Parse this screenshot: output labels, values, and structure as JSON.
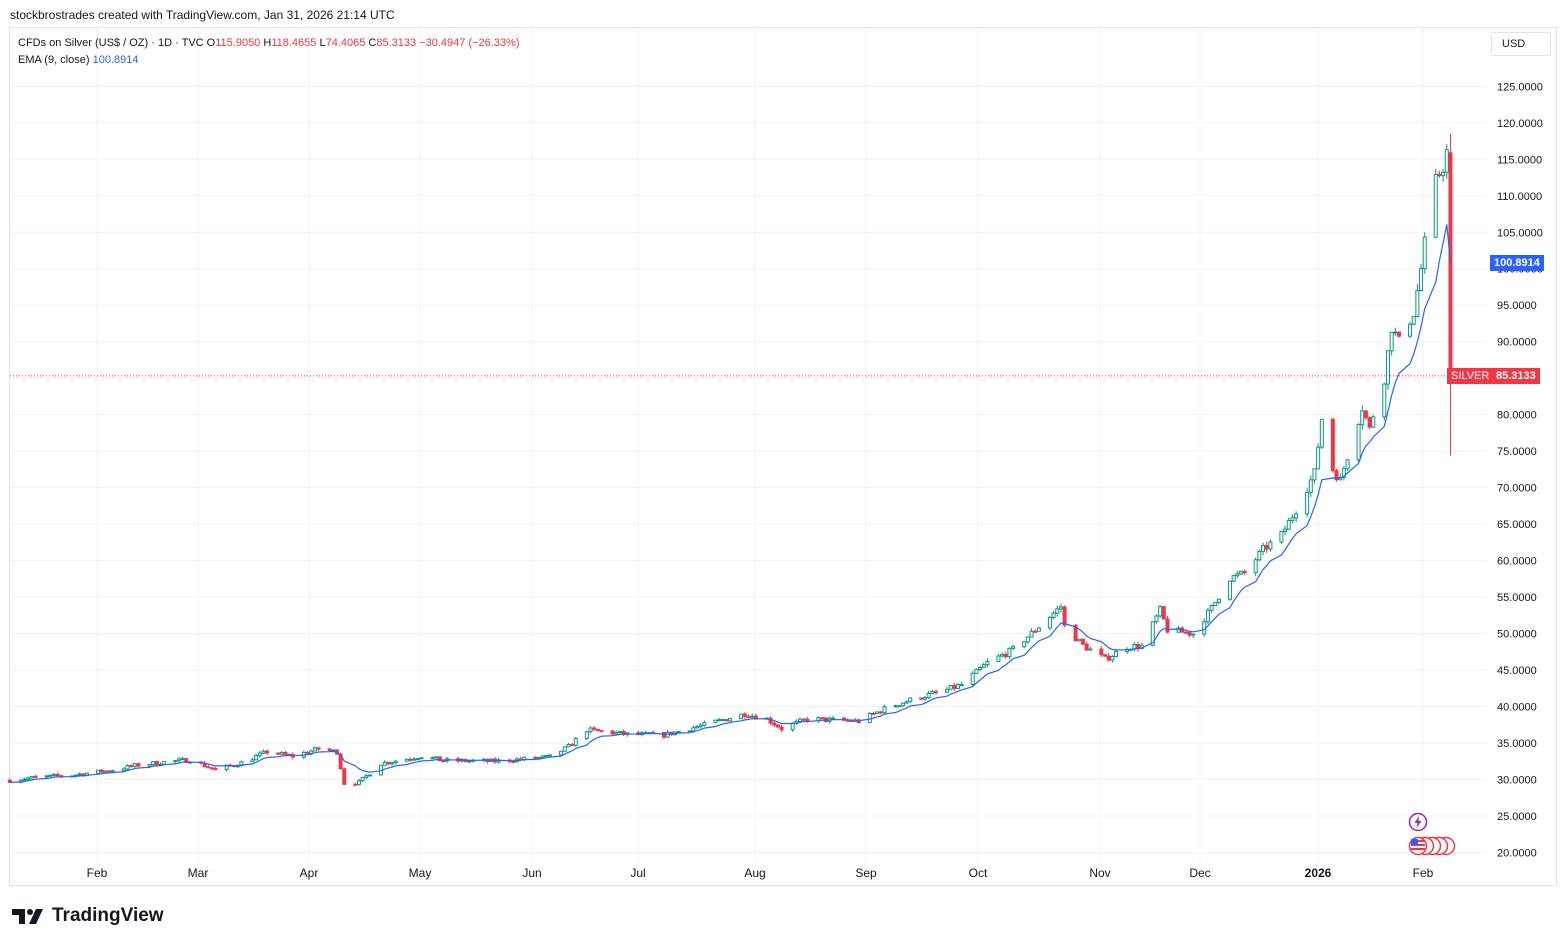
{
  "header": {
    "text": "stockbrostrades created with TradingView.com, Jan 31, 2026 21:14 UTC"
  },
  "legend": {
    "symbol": "CFDs on Silver (US$ / OZ) · 1D · TVC",
    "o_label": "O",
    "o_value": "115.9050",
    "h_label": "H",
    "h_value": "118.4655",
    "l_label": "L",
    "l_value": "74.4065",
    "c_label": "C",
    "c_value": "85.3133",
    "change": "−30.4947 (−26.33%)",
    "ema_label": "EMA (9, close)",
    "ema_value": "100.8914"
  },
  "currency": "USD",
  "tags": {
    "ema_value": "100.8914",
    "symbol_name": "SILVER",
    "last_price": "85.3133"
  },
  "colors": {
    "up": "#089981",
    "down": "#f23645",
    "ema": "#2962ff",
    "grid": "#f0f3fa"
  },
  "icons": [
    "flash-icon",
    "us-flag-icon"
  ],
  "footer": {
    "brand": "TradingView"
  },
  "chart_data": {
    "type": "candlestick",
    "title": "CFDs on Silver (US$ / OZ) · 1D · TVC",
    "ylabel": "USD",
    "ylim": [
      18.5,
      130
    ],
    "y_ticks": [
      "125.0000",
      "120.0000",
      "115.0000",
      "110.0000",
      "105.0000",
      "100.0000",
      "95.0000",
      "90.0000",
      "85.0000",
      "80.0000",
      "75.0000",
      "70.0000",
      "65.0000",
      "60.0000",
      "55.0000",
      "50.0000",
      "45.0000",
      "40.0000",
      "35.0000",
      "30.0000",
      "25.0000",
      "20.0000"
    ],
    "x_ticks": [
      "Feb",
      "Mar",
      "Apr",
      "May",
      "Jun",
      "Jul",
      "Aug",
      "Sep",
      "Oct",
      "Nov",
      "Dec",
      "2026",
      "Feb"
    ],
    "trend_anchors": [
      [
        "2025-01-03",
        29.9
      ],
      [
        "2025-01-10",
        30.3
      ],
      [
        "2025-01-20",
        30.6
      ],
      [
        "2025-01-31",
        31.3
      ],
      [
        "2025-02-07",
        32.0
      ],
      [
        "2025-02-14",
        32.4
      ],
      [
        "2025-02-21",
        32.7
      ],
      [
        "2025-02-28",
        31.3
      ],
      [
        "2025-03-07",
        32.3
      ],
      [
        "2025-03-14",
        33.8
      ],
      [
        "2025-03-21",
        33.2
      ],
      [
        "2025-03-28",
        34.2
      ],
      [
        "2025-04-02",
        33.8
      ],
      [
        "2025-04-04",
        29.5
      ],
      [
        "2025-04-08",
        29.6
      ],
      [
        "2025-04-14",
        32.2
      ],
      [
        "2025-04-25",
        33.2
      ],
      [
        "2025-05-01",
        32.6
      ],
      [
        "2025-05-15",
        32.5
      ],
      [
        "2025-05-30",
        33.1
      ],
      [
        "2025-06-04",
        34.5
      ],
      [
        "2025-06-09",
        36.8
      ],
      [
        "2025-06-20",
        36.2
      ],
      [
        "2025-06-30",
        36.1
      ],
      [
        "2025-07-11",
        37.5
      ],
      [
        "2025-07-22",
        39.0
      ],
      [
        "2025-07-28",
        38.3
      ],
      [
        "2025-08-01",
        37.0
      ],
      [
        "2025-08-08",
        38.3
      ],
      [
        "2025-08-22",
        38.0
      ],
      [
        "2025-08-29",
        39.7
      ],
      [
        "2025-09-05",
        40.9
      ],
      [
        "2025-09-15",
        42.3
      ],
      [
        "2025-09-19",
        43.0
      ],
      [
        "2025-09-26",
        46.0
      ],
      [
        "2025-10-03",
        47.8
      ],
      [
        "2025-10-09",
        50.5
      ],
      [
        "2025-10-14",
        52.8
      ],
      [
        "2025-10-16",
        53.7
      ],
      [
        "2025-10-17",
        51.0
      ],
      [
        "2025-10-22",
        48.4
      ],
      [
        "2025-10-28",
        46.5
      ],
      [
        "2025-11-03",
        48.2
      ],
      [
        "2025-11-07",
        48.3
      ],
      [
        "2025-11-12",
        53.2
      ],
      [
        "2025-11-14",
        50.5
      ],
      [
        "2025-11-21",
        50.0
      ],
      [
        "2025-11-26",
        53.5
      ],
      [
        "2025-12-01",
        57.6
      ],
      [
        "2025-12-05",
        58.3
      ],
      [
        "2025-12-10",
        61.5
      ],
      [
        "2025-12-15",
        63.5
      ],
      [
        "2025-12-19",
        67.0
      ],
      [
        "2025-12-24",
        72.0
      ],
      [
        "2025-12-26",
        79.5
      ],
      [
        "2025-12-29",
        72.5
      ],
      [
        "2025-12-31",
        71.0
      ],
      [
        "2026-01-06",
        81.0
      ],
      [
        "2026-01-08",
        78.0
      ],
      [
        "2026-01-09",
        80.0
      ],
      [
        "2026-01-12",
        85.0
      ],
      [
        "2026-01-14",
        92.0
      ],
      [
        "2026-01-16",
        90.0
      ],
      [
        "2026-01-20",
        94.0
      ],
      [
        "2026-01-22",
        100.0
      ],
      [
        "2026-01-23",
        103.5
      ],
      [
        "2026-01-26",
        112.0
      ],
      [
        "2026-01-28",
        114.0
      ],
      [
        "2026-01-29",
        116.0
      ],
      [
        "2026-01-30",
        85.3133
      ]
    ],
    "last_candle": {
      "date": "2026-01-30",
      "open": 115.905,
      "high": 118.4655,
      "low": 74.4065,
      "close": 85.3133
    },
    "ema": {
      "period": 9,
      "last_value": 100.8914,
      "peak": 105.0
    },
    "last_price_line": 85.3133
  }
}
